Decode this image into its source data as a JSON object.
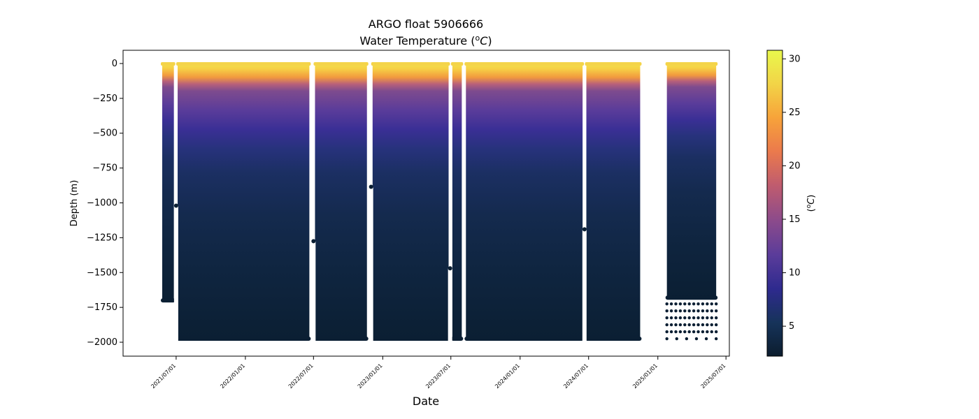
{
  "chart_data": {
    "type": "scatter",
    "title_line1": "ARGO float 5906666",
    "title_line2_prefix": "Water Temperature (",
    "title_line2_sup": "o",
    "title_line2_unit": "C",
    "title_line2_suffix": ")",
    "xlabel": "Date",
    "ylabel": "Depth (m)",
    "x_range": [
      "2021-02-10",
      "2025-07-10"
    ],
    "ylim": [
      -2100,
      95
    ],
    "x_ticks": [
      "2021/07/01",
      "2022/01/01",
      "2022/07/01",
      "2023/01/01",
      "2023/07/01",
      "2024/01/01",
      "2024/07/01",
      "2025/01/01",
      "2025/07/01"
    ],
    "y_ticks": [
      "0",
      "−250",
      "−500",
      "−750",
      "−1000",
      "−1250",
      "−1500",
      "−1750",
      "−2000"
    ],
    "y_tick_values": [
      0,
      -250,
      -500,
      -750,
      -1000,
      -1250,
      -1500,
      -1750,
      -2000
    ],
    "colorbar": {
      "label_prefix": "(",
      "label_sup": "o",
      "label_unit": "C",
      "label_suffix": ")",
      "range": [
        2.2,
        30.8
      ],
      "ticks": [
        "5",
        "10",
        "15",
        "20",
        "25",
        "30"
      ],
      "tick_values": [
        5,
        10,
        15,
        20,
        25,
        30
      ],
      "colormap": [
        "#0c1d2e",
        "#16335a",
        "#2e2a8e",
        "#5a3c9a",
        "#8a4a8c",
        "#c05c6e",
        "#eb7a4c",
        "#f7a33a",
        "#f2d447",
        "#e9f84c"
      ]
    },
    "temperature_profile": {
      "depths_m": [
        0,
        -50,
        -100,
        -130,
        -160,
        -200,
        -300,
        -400,
        -500,
        -600,
        -700,
        -800,
        -1000,
        -1200,
        -1500,
        -1750,
        -2000
      ],
      "temperature_c": [
        28.5,
        28.0,
        26.5,
        22.0,
        18.0,
        15.0,
        13.0,
        11.5,
        9.5,
        7.8,
        6.5,
        5.6,
        4.6,
        3.9,
        3.2,
        2.7,
        2.4
      ]
    },
    "segments": [
      {
        "start": "2021-05-25",
        "end": "2021-06-25",
        "max_depth": -1700
      },
      {
        "start": "2021-07-05",
        "end": "2022-06-20",
        "max_depth": -1975
      },
      {
        "start": "2022-07-05",
        "end": "2022-11-20",
        "max_depth": -1975
      },
      {
        "start": "2022-12-05",
        "end": "2023-06-25",
        "max_depth": -1975
      },
      {
        "start": "2023-07-05",
        "end": "2023-07-30",
        "max_depth": -1975
      },
      {
        "start": "2023-08-10",
        "end": "2024-06-15",
        "max_depth": -1975
      },
      {
        "start": "2024-06-25",
        "end": "2024-11-15",
        "max_depth": -1975
      },
      {
        "start": "2025-01-25",
        "end": "2025-06-05",
        "max_depth": -1680
      }
    ],
    "shallow_profiles": [
      {
        "date": "2021-07-01",
        "max_depth": -1020
      },
      {
        "date": "2022-07-01",
        "max_depth": -1275
      },
      {
        "date": "2022-12-01",
        "max_depth": -885
      },
      {
        "date": "2023-06-29",
        "max_depth": -1470
      },
      {
        "date": "2024-06-20",
        "max_depth": -1190
      }
    ],
    "sparse_deep_points": {
      "start": "2025-01-25",
      "end": "2025-06-05",
      "depths_m": [
        -1725,
        -1775,
        -1825,
        -1875,
        -1925,
        -1975
      ]
    }
  }
}
